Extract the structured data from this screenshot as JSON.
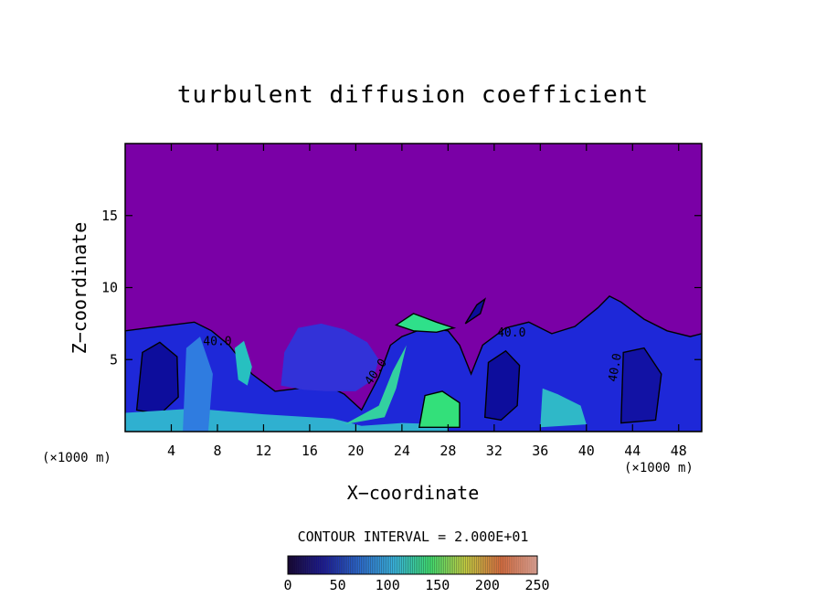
{
  "chart_data": {
    "type": "heatmap",
    "title": "turbulent diffusion coefficient",
    "xlabel": "X−coordinate",
    "ylabel": "Z−coordinate",
    "x_unit_left": "(×1000 m)",
    "x_unit_right": "(×1000 m)",
    "xlim": [
      0,
      50
    ],
    "ylim": [
      0,
      20
    ],
    "x_ticks": [
      4,
      8,
      12,
      16,
      20,
      24,
      28,
      32,
      36,
      40,
      44,
      48
    ],
    "y_ticks": [
      5,
      10,
      15
    ],
    "contour_interval_text": "CONTOUR INTERVAL = 2.000E+01",
    "contour_labels": [
      {
        "text": "40.0",
        "x": 8.0,
        "z": 6.0
      },
      {
        "text": "40.0",
        "x": 22.0,
        "z": 4.0
      },
      {
        "text": "40.0",
        "x": 33.5,
        "z": 6.6
      },
      {
        "text": "40.0",
        "x": 42.8,
        "z": 4.4
      }
    ],
    "colorbar": {
      "min": 0,
      "max": 250,
      "tick_values": [
        0,
        50,
        100,
        150,
        200,
        250
      ],
      "colors": [
        "#1a0a3a",
        "#1a1a9a",
        "#2a6ad0",
        "#39b8e0",
        "#40e070",
        "#c8d040",
        "#e07040",
        "#f0b0a0"
      ]
    },
    "background_color": "#7a00a6"
  }
}
